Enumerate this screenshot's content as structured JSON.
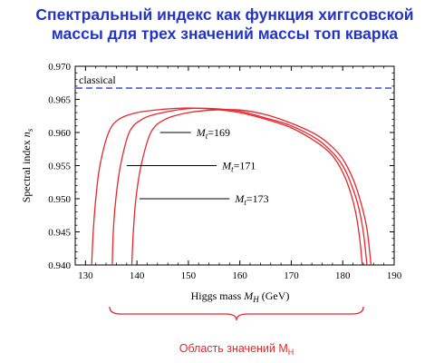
{
  "slide": {
    "title_line1": "Спектральный индекс как функция хиггсовской",
    "title_line2": "массы для трех значений массы топ кварка",
    "range_caption": "Область значений M",
    "range_caption_sub": "H"
  },
  "colors": {
    "title": "#2233c8",
    "curve": "#e8262c",
    "reference_line": "#2b3fcf",
    "range_brace": "#e8262c"
  },
  "chart_data": {
    "type": "line",
    "title": "",
    "xlabel": "Higgs mass",
    "xlabel_symbol": "M",
    "xlabel_subscript": "H",
    "xlabel_unit": "(GeV)",
    "ylabel": "Spectral index",
    "ylabel_symbol": "n",
    "ylabel_subscript": "s",
    "xlim": [
      128,
      190
    ],
    "ylim": [
      0.94,
      0.97
    ],
    "x_ticks": [
      130,
      140,
      150,
      160,
      170,
      180,
      190
    ],
    "y_ticks": [
      0.94,
      0.945,
      0.95,
      0.955,
      0.96,
      0.965,
      0.97
    ],
    "y_tick_labels": [
      "0.940",
      "0.945",
      "0.950",
      "0.955",
      "0.960",
      "0.965",
      "0.970"
    ],
    "reference_line": {
      "label": "classical",
      "y": 0.9667,
      "style": "dashed"
    },
    "series": [
      {
        "label_symbol": "M",
        "label_subscript": "t",
        "label_value": "=169",
        "label_anchor": {
          "x": 144.5,
          "y": 0.96
        },
        "points": [
          [
            131.2,
            0.94
          ],
          [
            131.5,
            0.945
          ],
          [
            132,
            0.95
          ],
          [
            132.8,
            0.955
          ],
          [
            134.5,
            0.96
          ],
          [
            136.5,
            0.962
          ],
          [
            140,
            0.963
          ],
          [
            145,
            0.9635
          ],
          [
            150,
            0.9637
          ],
          [
            155,
            0.9635
          ],
          [
            160,
            0.963
          ],
          [
            165,
            0.962
          ],
          [
            170,
            0.9607
          ],
          [
            175,
            0.9585
          ],
          [
            178,
            0.9565
          ],
          [
            180,
            0.954
          ],
          [
            181.5,
            0.951
          ],
          [
            182.5,
            0.948
          ],
          [
            183.3,
            0.944
          ],
          [
            183.8,
            0.94
          ]
        ]
      },
      {
        "label_symbol": "M",
        "label_subscript": "t",
        "label_value": "=171",
        "label_anchor": {
          "x": 138,
          "y": 0.955
        },
        "points": [
          [
            135.2,
            0.94
          ],
          [
            135.4,
            0.945
          ],
          [
            135.9,
            0.95
          ],
          [
            136.8,
            0.955
          ],
          [
            138.5,
            0.96
          ],
          [
            141,
            0.962
          ],
          [
            145,
            0.963
          ],
          [
            150,
            0.9636
          ],
          [
            155,
            0.9636
          ],
          [
            160,
            0.9632
          ],
          [
            165,
            0.9622
          ],
          [
            170,
            0.961
          ],
          [
            175,
            0.959
          ],
          [
            178,
            0.957
          ],
          [
            180,
            0.955
          ],
          [
            181.5,
            0.9525
          ],
          [
            183,
            0.949
          ],
          [
            184,
            0.945
          ],
          [
            184.7,
            0.94
          ]
        ]
      },
      {
        "label_symbol": "M",
        "label_subscript": "t",
        "label_value": "=173",
        "label_anchor": {
          "x": 140.5,
          "y": 0.95
        },
        "points": [
          [
            139,
            0.94
          ],
          [
            139.3,
            0.945
          ],
          [
            139.8,
            0.95
          ],
          [
            140.8,
            0.955
          ],
          [
            142.7,
            0.96
          ],
          [
            145.5,
            0.962
          ],
          [
            150,
            0.963
          ],
          [
            155,
            0.9634
          ],
          [
            160,
            0.9634
          ],
          [
            165,
            0.9627
          ],
          [
            170,
            0.9614
          ],
          [
            175,
            0.9596
          ],
          [
            178,
            0.9578
          ],
          [
            180,
            0.956
          ],
          [
            182,
            0.953
          ],
          [
            183.5,
            0.9495
          ],
          [
            184.7,
            0.9455
          ],
          [
            185.5,
            0.94
          ]
        ]
      }
    ],
    "legend": "inline labels with leader lines",
    "grid": false
  }
}
